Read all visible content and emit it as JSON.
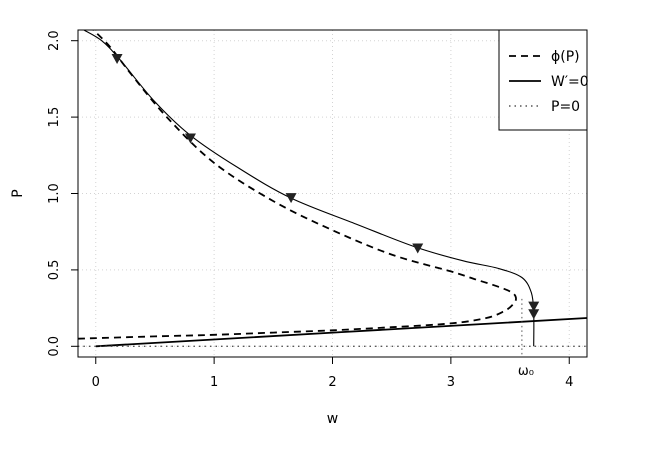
{
  "chart_data": {
    "type": "line",
    "xlabel": "w",
    "ylabel": "P",
    "xlim": [
      -0.15,
      4.15
    ],
    "ylim": [
      -0.07,
      2.07
    ],
    "grid": true,
    "x_ticks": [
      0,
      1,
      2,
      3,
      4
    ],
    "x_tick_labels": [
      "0",
      "1",
      "2",
      "3",
      "4"
    ],
    "y_ticks": [
      0.0,
      0.5,
      1.0,
      1.5,
      2.0
    ],
    "y_tick_labels": [
      "0.0",
      "0.5",
      "1.0",
      "1.5",
      "2.0"
    ],
    "legend_position": "top-right",
    "legend": [
      {
        "label": "ϕ(P)",
        "style": "dashed"
      },
      {
        "label": "W′=0",
        "style": "solid"
      },
      {
        "label": "P=0",
        "style": "dotted"
      }
    ],
    "series": [
      {
        "name": "ϕ(P)",
        "style": "dashed",
        "points": [
          [
            -0.15,
            0.05
          ],
          [
            0.5,
            0.065
          ],
          [
            1.0,
            0.075
          ],
          [
            1.5,
            0.09
          ],
          [
            2.0,
            0.105
          ],
          [
            2.5,
            0.125
          ],
          [
            3.0,
            0.15
          ],
          [
            3.3,
            0.185
          ],
          [
            3.45,
            0.23
          ],
          [
            3.52,
            0.27
          ],
          [
            3.55,
            0.31
          ],
          [
            3.52,
            0.35
          ],
          [
            3.4,
            0.39
          ],
          [
            3.2,
            0.44
          ],
          [
            3.0,
            0.49
          ],
          [
            2.5,
            0.6
          ],
          [
            2.0,
            0.76
          ],
          [
            1.5,
            0.95
          ],
          [
            1.0,
            1.2
          ],
          [
            0.6,
            1.5
          ],
          [
            0.3,
            1.78
          ],
          [
            0.12,
            1.96
          ],
          [
            -0.02,
            2.07
          ]
        ]
      },
      {
        "name": "W′=0",
        "style": "solid",
        "points": [
          [
            0.0,
            0.0
          ],
          [
            4.15,
            0.185
          ]
        ]
      },
      {
        "name": "P=0",
        "style": "dotted",
        "points": [
          [
            -0.15,
            0.0
          ],
          [
            4.15,
            0.0
          ]
        ]
      },
      {
        "name": "trajectory",
        "style": "solid-thin",
        "points": [
          [
            -0.1,
            2.07
          ],
          [
            0.05,
            2.0
          ],
          [
            0.2,
            1.88
          ],
          [
            0.5,
            1.6
          ],
          [
            0.8,
            1.38
          ],
          [
            1.2,
            1.17
          ],
          [
            1.65,
            0.97
          ],
          [
            2.2,
            0.8
          ],
          [
            2.7,
            0.65
          ],
          [
            3.1,
            0.56
          ],
          [
            3.4,
            0.51
          ],
          [
            3.6,
            0.45
          ],
          [
            3.68,
            0.35
          ],
          [
            3.7,
            0.22
          ],
          [
            3.7,
            0.0
          ]
        ]
      }
    ],
    "arrows": [
      {
        "x": 0.18,
        "y": 1.88,
        "dir": "down"
      },
      {
        "x": 0.8,
        "y": 1.36,
        "dir": "down"
      },
      {
        "x": 1.65,
        "y": 0.97,
        "dir": "down"
      },
      {
        "x": 2.72,
        "y": 0.64,
        "dir": "down"
      },
      {
        "x": 3.7,
        "y": 0.26,
        "dir": "down"
      },
      {
        "x": 3.7,
        "y": 0.21,
        "dir": "down"
      }
    ],
    "annotation": {
      "label": "ω₀",
      "x": 3.6
    }
  }
}
